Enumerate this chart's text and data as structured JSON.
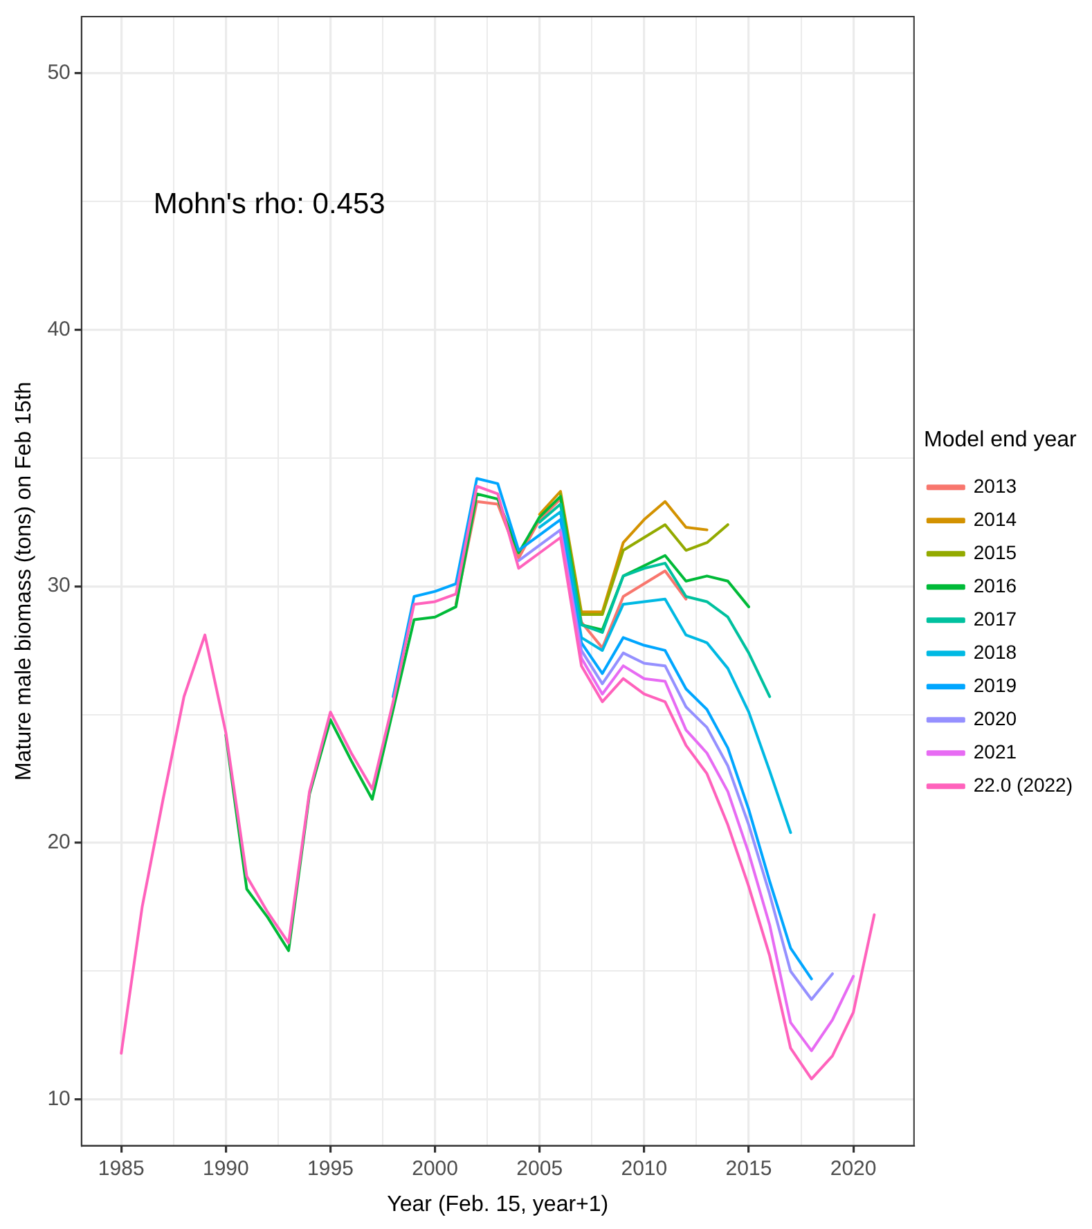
{
  "chart_data": {
    "type": "line",
    "xlabel": "Year (Feb. 15, year+1)",
    "ylabel": "Mature male biomass (tons) on Feb 15th",
    "legend_title": "Model end year",
    "annotations": [
      "Mohn's rho: 0.453"
    ],
    "x": [
      1985,
      1986,
      1987,
      1988,
      1989,
      1990,
      1991,
      1992,
      1993,
      1994,
      1995,
      1996,
      1997,
      1998,
      1999,
      2000,
      2001,
      2002,
      2003,
      2004,
      2005,
      2006,
      2007,
      2008,
      2009,
      2010,
      2011,
      2012,
      2013,
      2014,
      2015,
      2016,
      2017,
      2018,
      2019,
      2020,
      2021
    ],
    "xlim": [
      1983.1,
      2022.9
    ],
    "xticks": [
      1985,
      {
        "value": 1987.5,
        "label": null
      },
      1990,
      {
        "value": 1992.5,
        "label": null
      },
      1995,
      {
        "value": 1997.5,
        "label": null
      },
      2000,
      {
        "value": 2002.5,
        "label": null
      },
      2005,
      {
        "value": 2007.5,
        "label": null
      },
      2010,
      {
        "value": 2012.5,
        "label": null
      },
      2015,
      {
        "value": 2017.5,
        "label": null
      },
      2020
    ],
    "ylim": [
      8.2,
      52.2
    ],
    "yticks": [
      10,
      {
        "value": 15,
        "label": null
      },
      20,
      {
        "value": 25,
        "label": null
      },
      30,
      {
        "value": 35,
        "label": null
      },
      40,
      {
        "value": 45,
        "label": null
      },
      50
    ],
    "grid": true,
    "legend": "right",
    "marker": "none",
    "line_style": "solid",
    "series": [
      {
        "name": "2013",
        "color": "#f8766d",
        "values": [
          null,
          null,
          null,
          null,
          null,
          null,
          null,
          null,
          null,
          null,
          null,
          null,
          null,
          null,
          null,
          null,
          29.3,
          33.3,
          33.2,
          31.1,
          32.6,
          33.4,
          28.6,
          27.6,
          29.6,
          30.1,
          30.6,
          29.5,
          null,
          null,
          null,
          null,
          null,
          null,
          null,
          null,
          null
        ]
      },
      {
        "name": "2014",
        "color": "#d39200",
        "values": [
          null,
          null,
          null,
          null,
          null,
          null,
          null,
          null,
          null,
          null,
          null,
          null,
          null,
          null,
          null,
          null,
          null,
          null,
          null,
          null,
          32.8,
          33.7,
          29.0,
          29.0,
          31.7,
          32.6,
          33.3,
          32.3,
          32.2,
          null,
          null,
          null,
          null,
          null,
          null,
          null,
          null
        ]
      },
      {
        "name": "2015",
        "color": "#93aa00",
        "values": [
          null,
          null,
          null,
          null,
          null,
          null,
          null,
          null,
          null,
          null,
          null,
          null,
          null,
          null,
          null,
          null,
          null,
          null,
          null,
          null,
          null,
          33.6,
          28.9,
          28.9,
          31.4,
          31.9,
          32.4,
          31.4,
          31.7,
          32.4,
          null,
          null,
          null,
          null,
          null,
          null,
          null
        ]
      },
      {
        "name": "2016",
        "color": "#00ba38",
        "values": [
          null,
          null,
          null,
          null,
          null,
          24.2,
          18.2,
          17.1,
          15.8,
          21.9,
          24.8,
          23.2,
          21.7,
          25.2,
          28.7,
          28.8,
          29.2,
          33.6,
          33.4,
          31.3,
          32.7,
          33.5,
          28.5,
          28.3,
          30.4,
          30.8,
          31.2,
          30.2,
          30.4,
          30.2,
          29.2,
          null,
          null,
          null,
          null,
          null,
          null
        ]
      },
      {
        "name": "2017",
        "color": "#00c19f",
        "values": [
          null,
          null,
          null,
          null,
          null,
          null,
          null,
          null,
          null,
          null,
          null,
          null,
          null,
          null,
          null,
          null,
          null,
          null,
          null,
          null,
          32.5,
          33.2,
          28.5,
          28.2,
          30.4,
          30.7,
          30.9,
          29.6,
          29.4,
          28.8,
          27.4,
          25.7,
          null,
          null,
          null,
          null,
          null
        ]
      },
      {
        "name": "2018",
        "color": "#00b9e3",
        "values": [
          null,
          null,
          null,
          null,
          null,
          null,
          null,
          null,
          null,
          null,
          null,
          null,
          null,
          null,
          null,
          null,
          null,
          null,
          null,
          null,
          32.3,
          32.9,
          28.0,
          27.5,
          29.3,
          29.4,
          29.5,
          28.1,
          27.8,
          26.8,
          25.1,
          22.8,
          20.4,
          null,
          null,
          null,
          null
        ]
      },
      {
        "name": "2019",
        "color": "#00a6ff",
        "values": [
          null,
          null,
          null,
          null,
          null,
          null,
          null,
          null,
          null,
          null,
          null,
          null,
          null,
          25.7,
          29.6,
          29.8,
          30.1,
          34.2,
          34.0,
          31.4,
          32.0,
          32.6,
          27.8,
          26.6,
          28.0,
          27.7,
          27.5,
          26.0,
          25.2,
          23.7,
          21.3,
          18.5,
          15.9,
          14.7,
          null,
          null,
          null
        ]
      },
      {
        "name": "2020",
        "color": "#9590ff",
        "values": [
          null,
          null,
          null,
          null,
          null,
          null,
          null,
          null,
          null,
          null,
          null,
          null,
          null,
          null,
          null,
          null,
          null,
          null,
          null,
          31.0,
          31.6,
          32.2,
          27.5,
          26.2,
          27.4,
          27.0,
          26.9,
          25.3,
          24.5,
          23.0,
          20.7,
          18.0,
          15.0,
          13.9,
          14.9,
          null,
          null
        ]
      },
      {
        "name": "2021",
        "color": "#e76bf3",
        "values": [
          null,
          null,
          null,
          null,
          null,
          null,
          null,
          null,
          null,
          null,
          null,
          null,
          null,
          null,
          null,
          null,
          null,
          null,
          null,
          null,
          null,
          32.1,
          27.2,
          25.8,
          26.9,
          26.4,
          26.3,
          24.4,
          23.5,
          22.0,
          19.6,
          16.8,
          13.0,
          11.9,
          13.1,
          14.8,
          null
        ]
      },
      {
        "name": "22.0 (2022)",
        "color": "#ff62bc",
        "values": [
          11.8,
          17.5,
          21.7,
          25.7,
          28.1,
          24.3,
          18.7,
          17.3,
          16.1,
          22.0,
          25.1,
          23.5,
          22.1,
          25.5,
          29.3,
          29.4,
          29.7,
          33.9,
          33.6,
          30.7,
          31.3,
          31.9,
          26.9,
          25.5,
          26.4,
          25.8,
          25.5,
          23.8,
          22.7,
          20.7,
          18.3,
          15.6,
          12.0,
          10.8,
          11.7,
          13.4,
          17.2
        ]
      }
    ]
  }
}
